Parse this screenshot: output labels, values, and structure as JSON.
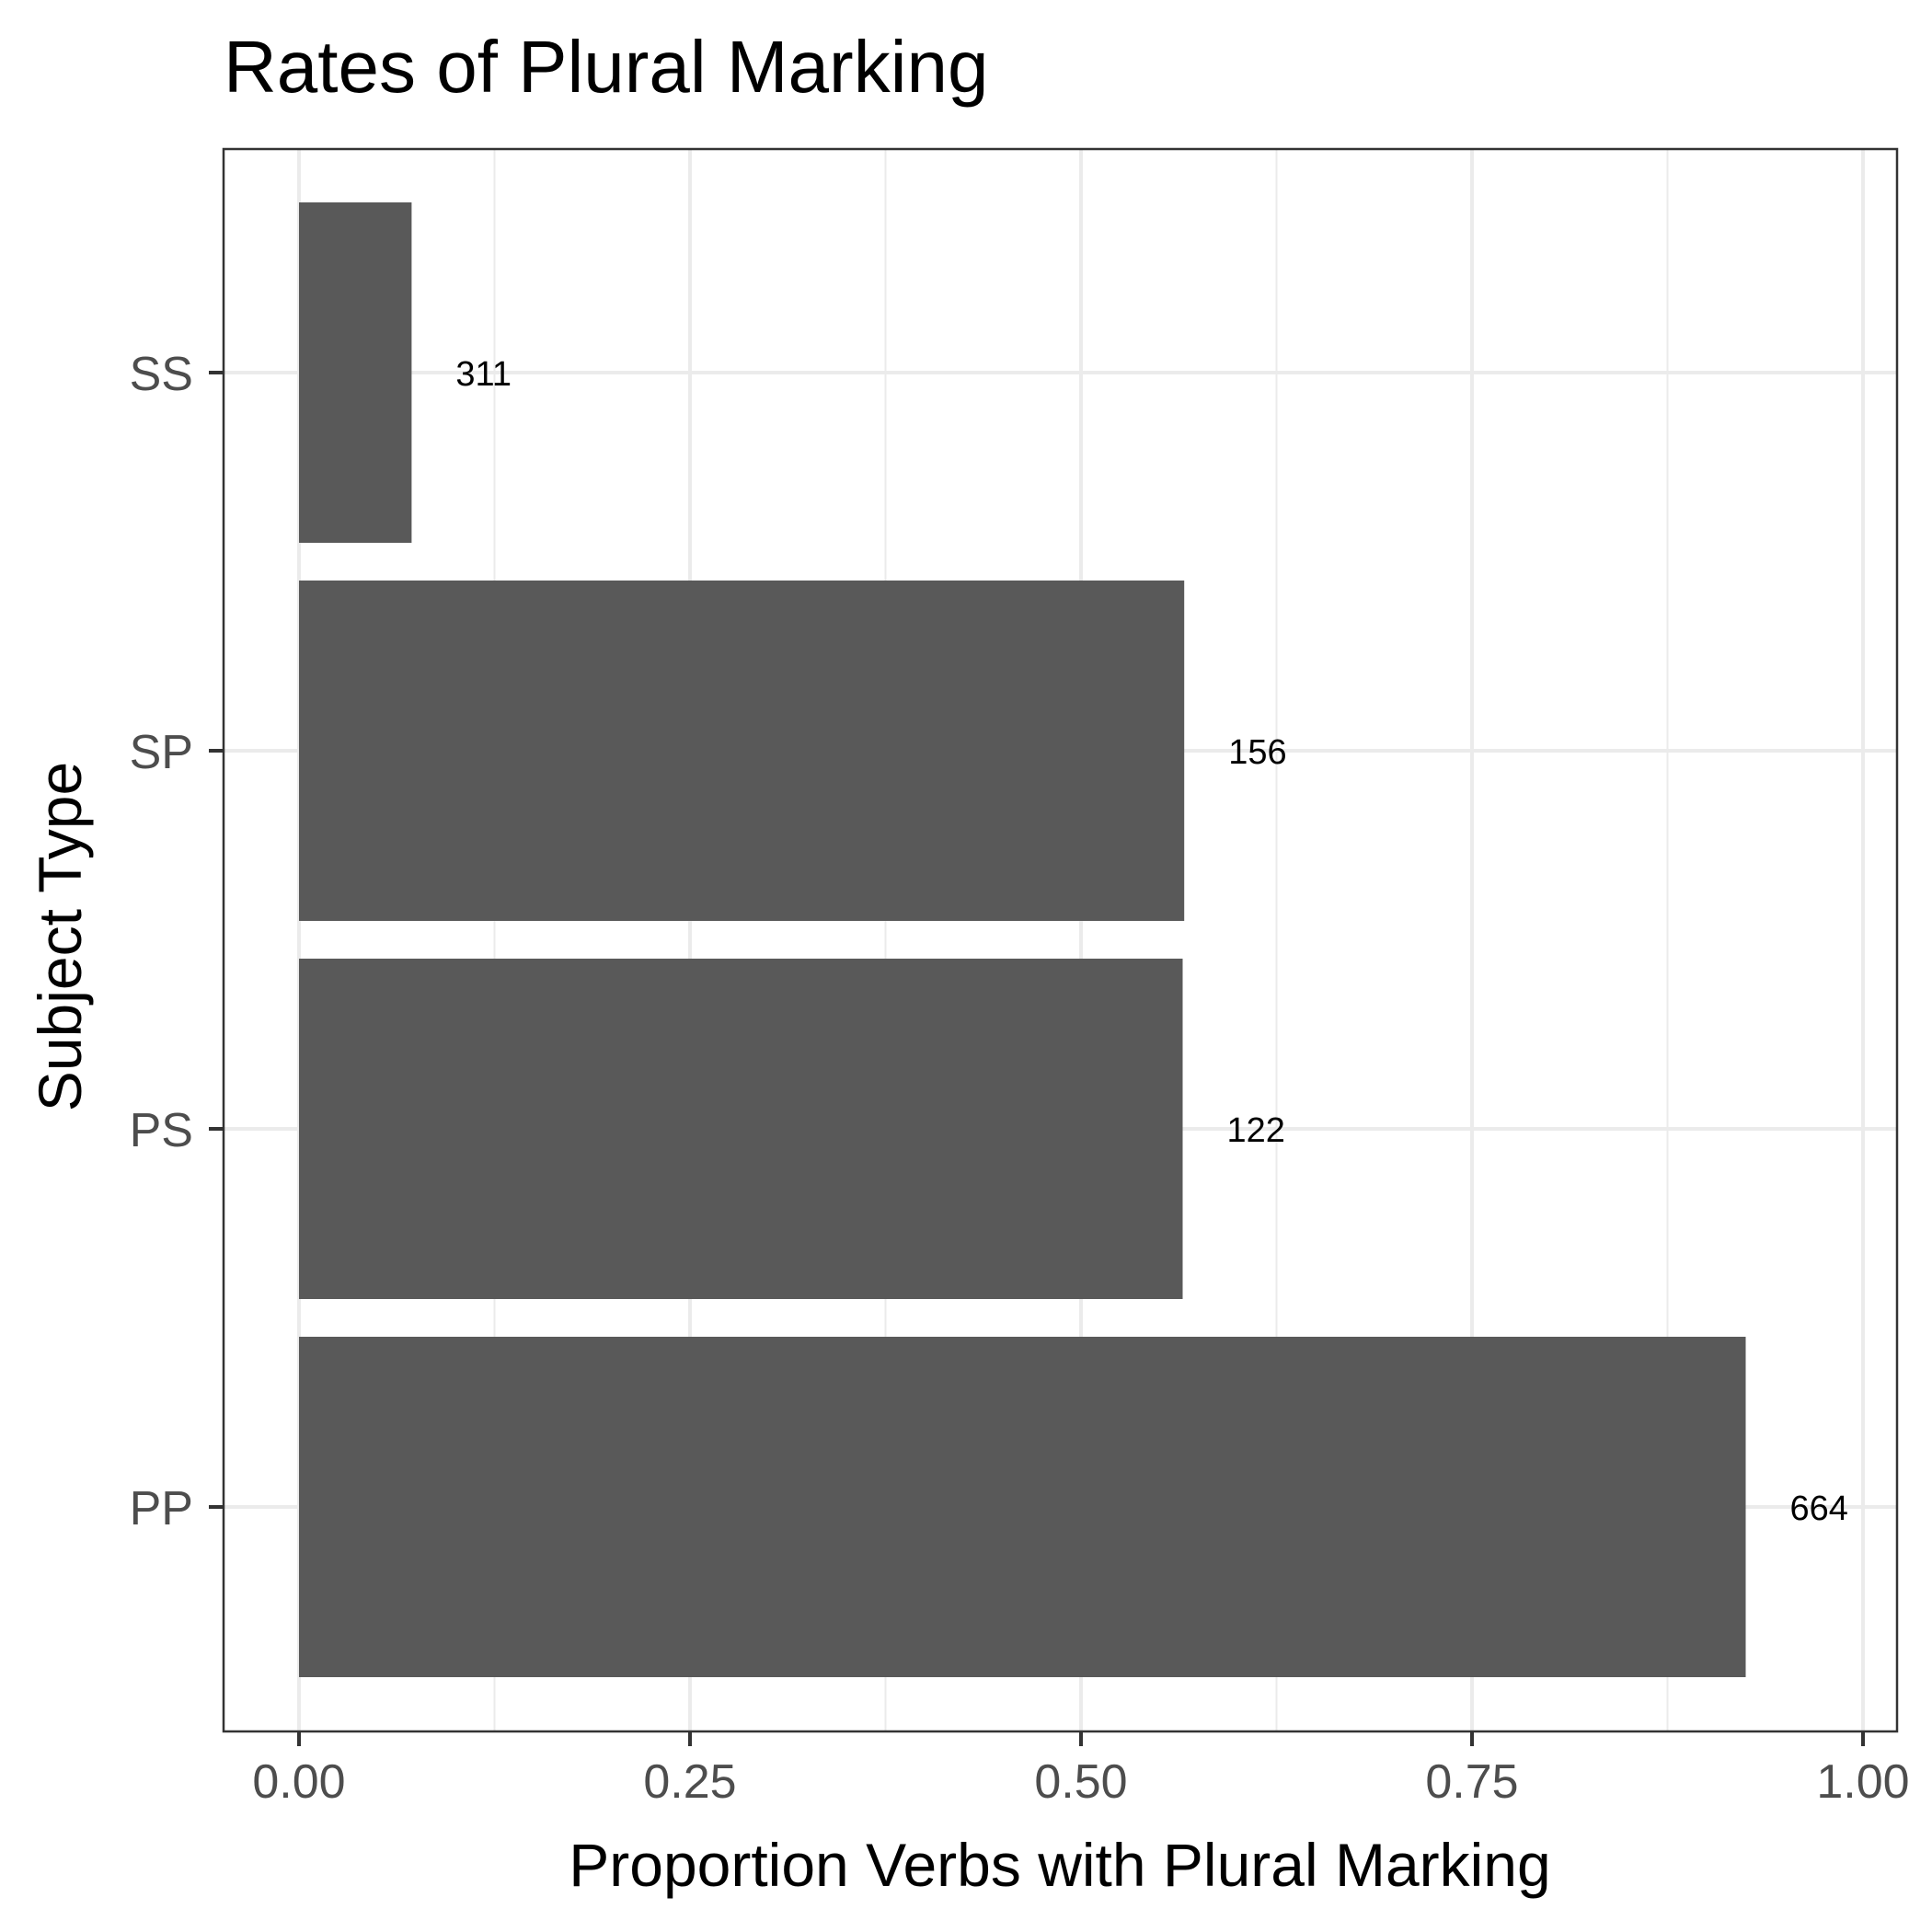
{
  "chart_data": {
    "type": "bar",
    "orientation": "horizontal",
    "title": "Rates of Plural Marking",
    "xlabel": "Proportion Verbs with Plural Marking",
    "ylabel": "Subject Type",
    "categories": [
      "SS",
      "SP",
      "PS",
      "PP"
    ],
    "values": [
      0.072,
      0.566,
      0.565,
      0.925
    ],
    "data_labels": [
      "311",
      "156",
      "122",
      "664"
    ],
    "xlim": [
      0,
      1
    ],
    "xticks": [
      0,
      0.25,
      0.5,
      0.75,
      1
    ],
    "xtick_labels": [
      "0.00",
      "0.25",
      "0.50",
      "0.75",
      "1.00"
    ],
    "grid": true,
    "legend": "none",
    "bar_color": "#595959",
    "grid_color": "#ebebeb",
    "panel_border_color": "#333333",
    "tick_label_color": "#4d4d4d"
  }
}
